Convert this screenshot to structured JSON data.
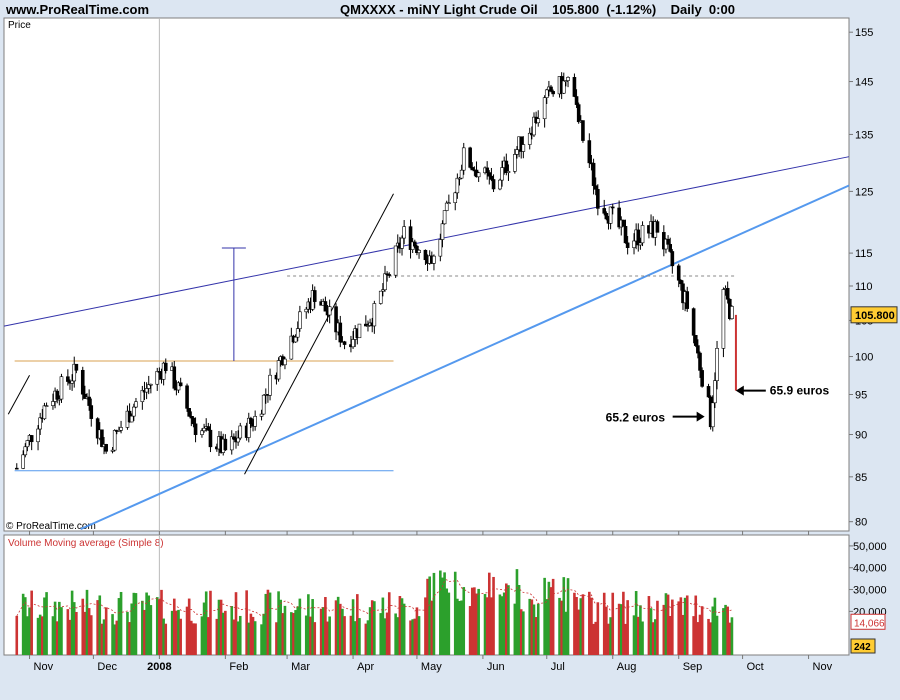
{
  "header": {
    "site": "www.ProRealTime.com",
    "title": "QMXXXX - miNY Light Crude Oil    105.800  (-1.12%)    Daily  0:00"
  },
  "price_panel": {
    "label": "Price",
    "copyright": "© ProRealTime.com"
  },
  "volume_panel": {
    "label": "Volume Moving average (Simple 8)"
  },
  "colors": {
    "background": "#dce6f2",
    "panel": "#ffffff",
    "up": "#2ca02c",
    "down": "#cc3333",
    "blue_line": "#3333aa",
    "light_blue_line": "#5599ee",
    "orange_line": "#d9a050"
  },
  "annotations": [
    {
      "text": "65.2 euros",
      "x": "2008-09-16",
      "y": 92.2
    },
    {
      "text": "65.9 euros",
      "x": "2008-09-25",
      "y": 95.5
    }
  ],
  "chart_data": [
    {
      "type": "line",
      "title": "QMXXXX - miNY Light Crude Oil",
      "ylabel": "Price",
      "x_ticks": [
        "Nov",
        "Dec",
        "2008",
        "Feb",
        "Mar",
        "Apr",
        "May",
        "Jun",
        "Jul",
        "Aug",
        "Sep",
        "Oct",
        "Nov"
      ],
      "y_ticks": [
        80,
        85,
        90,
        95,
        100,
        105,
        110,
        115,
        125,
        135,
        145,
        155
      ],
      "scale": "log",
      "ylim": [
        79,
        158
      ],
      "last_price": "105.800",
      "series": [
        {
          "x": [
            "2007-10-26",
            "2007-11-09",
            "2007-11-23",
            "2007-12-07",
            "2007-12-21",
            "2008-01-04",
            "2008-01-18",
            "2008-02-01",
            "2008-02-15",
            "2008-02-29",
            "2008-03-14",
            "2008-03-28",
            "2008-04-11",
            "2008-04-25",
            "2008-05-09",
            "2008-05-23",
            "2008-06-06",
            "2008-06-20",
            "2008-07-03",
            "2008-07-11",
            "2008-07-25",
            "2008-08-08",
            "2008-08-22",
            "2008-09-05",
            "2008-09-16",
            "2008-09-22",
            "2008-09-26"
          ],
          "values": [
            86,
            94,
            98,
            88,
            94,
            99,
            91,
            88,
            92,
            101,
            109,
            102,
            106,
            118,
            114,
            131,
            126,
            134,
            143,
            145,
            124,
            117,
            119,
            107,
            92,
            109,
            105.8
          ]
        }
      ]
    },
    {
      "type": "bar",
      "title": "Volume Moving average (Simple 8)",
      "y_ticks": [
        "20,000",
        "30,000",
        "40,000",
        "50,000"
      ],
      "ylim": [
        0,
        55000
      ],
      "last_volume": "14,066",
      "last_value_label": "242"
    }
  ]
}
